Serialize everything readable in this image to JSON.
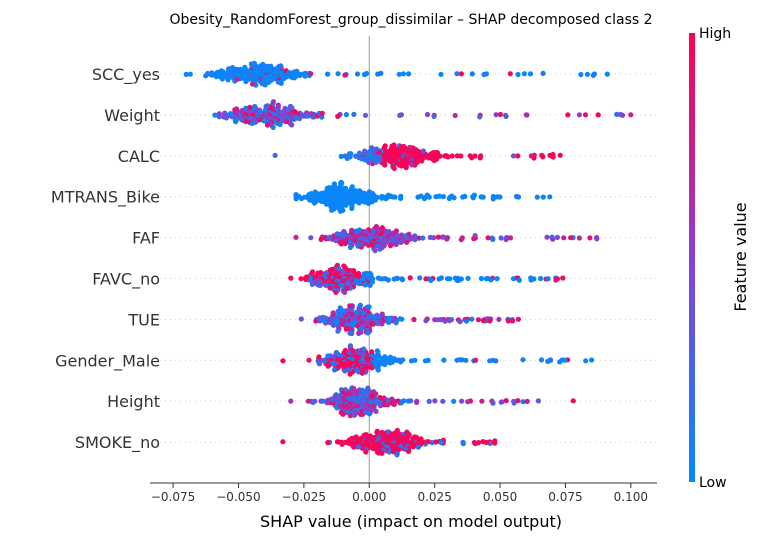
{
  "chart_data": {
    "type": "scatter",
    "subtype": "shap-beeswarm",
    "title": "Obesity_RandomForest_group_dissimilar – SHAP decomposed class 2",
    "xlabel": "SHAP value (impact on model output)",
    "xlim": [
      -0.08,
      0.11
    ],
    "xticks": [
      -0.075,
      -0.05,
      -0.025,
      0.0,
      0.025,
      0.05,
      0.075,
      0.1
    ],
    "xtick_labels": [
      "−0.075",
      "−0.050",
      "−0.025",
      "0.000",
      "0.025",
      "0.050",
      "0.075",
      "0.100"
    ],
    "colorbar": {
      "label": "Feature value",
      "high": "High",
      "low": "Low",
      "low_color": "#008bfb",
      "high_color": "#ff0051"
    },
    "features": [
      {
        "name": "SCC_yes",
        "min": -0.07,
        "max": 0.091,
        "center": -0.043,
        "spread": 0.016,
        "color_mode": "mostly_low"
      },
      {
        "name": "Weight",
        "min": -0.059,
        "max": 0.1,
        "center": -0.04,
        "spread": 0.016,
        "color_mode": "mixed"
      },
      {
        "name": "CALC",
        "min": -0.036,
        "max": 0.073,
        "center": 0.01,
        "spread": 0.016,
        "color_mode": "high_right"
      },
      {
        "name": "MTRANS_Bike",
        "min": -0.028,
        "max": 0.069,
        "center": -0.01,
        "spread": 0.013,
        "color_mode": "low"
      },
      {
        "name": "FAF",
        "min": -0.028,
        "max": 0.087,
        "center": 0.0,
        "spread": 0.015,
        "color_mode": "mixed"
      },
      {
        "name": "FAVC_no",
        "min": -0.03,
        "max": 0.074,
        "center": -0.01,
        "spread": 0.013,
        "color_mode": "high_left"
      },
      {
        "name": "TUE",
        "min": -0.026,
        "max": 0.057,
        "center": -0.005,
        "spread": 0.012,
        "color_mode": "mixed"
      },
      {
        "name": "Gender_Male",
        "min": -0.033,
        "max": 0.085,
        "center": -0.005,
        "spread": 0.012,
        "color_mode": "high_left"
      },
      {
        "name": "Height",
        "min": -0.03,
        "max": 0.078,
        "center": -0.005,
        "spread": 0.012,
        "color_mode": "mixed"
      },
      {
        "name": "SMOKE_no",
        "min": -0.033,
        "max": 0.048,
        "center": 0.005,
        "spread": 0.014,
        "color_mode": "high"
      }
    ]
  }
}
